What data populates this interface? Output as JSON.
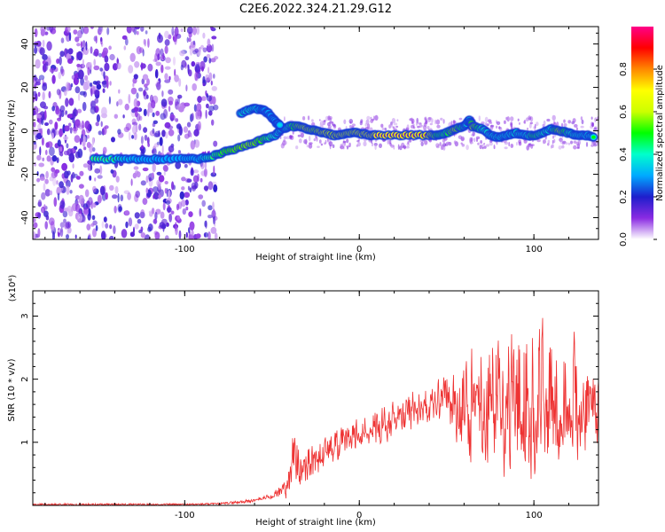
{
  "title": "C2E6.2022.324.21.29.G12",
  "chart_data": [
    {
      "type": "heatmap",
      "xlabel": "Height of straight line (km)",
      "ylabel": "Frequency (Hz)",
      "xlim": [
        -187,
        137
      ],
      "ylim": [
        -50,
        48
      ],
      "xticks": [
        -100,
        0,
        100
      ],
      "yticks": [
        -40,
        -20,
        0,
        20,
        40
      ],
      "grid": false,
      "noise_region_x": [
        -187,
        -88
      ],
      "ridge": {
        "x": [
          -152,
          -142,
          -132,
          -122,
          -112,
          -100,
          -92,
          -85,
          -78,
          -70,
          -62,
          -55,
          -48,
          -44,
          -40,
          -35,
          -30,
          -25,
          -20,
          -15,
          -10,
          -5,
          0,
          5,
          10,
          20,
          30,
          40,
          45,
          50,
          55,
          60,
          63,
          65,
          70,
          75,
          80,
          85,
          90,
          95,
          100,
          105,
          110,
          115,
          120,
          125,
          130,
          135
        ],
        "y": [
          -13,
          -13,
          -13,
          -13,
          -13,
          -13,
          -13,
          -12,
          -10,
          -8,
          -6,
          -4,
          -2,
          1,
          2,
          2,
          1,
          0,
          -1,
          -2,
          -2,
          -1,
          -1,
          -2,
          -2,
          -2,
          -2,
          -2,
          -2,
          -1,
          1,
          2,
          5,
          2,
          1,
          -2,
          -3,
          -2,
          -1,
          -2,
          -2,
          -1,
          1,
          0,
          -1,
          -2,
          -2,
          -3
        ],
        "amplitude": [
          0.6,
          0.55,
          0.4,
          0.3,
          0.3,
          0.3,
          0.4,
          0.6,
          0.7,
          0.75,
          0.8,
          0.7,
          0.55,
          0.5,
          0.6,
          0.8,
          0.85,
          0.8,
          0.9,
          0.85,
          0.9,
          0.85,
          0.9,
          0.95,
          1.0,
          1.0,
          1.0,
          0.95,
          0.7,
          0.65,
          0.85,
          0.6,
          0.5,
          0.85,
          0.6,
          0.5,
          0.55,
          0.5,
          0.55,
          0.5,
          0.7,
          0.6,
          0.55,
          0.85,
          0.6,
          0.55,
          0.5,
          0.5
        ]
      },
      "branch": {
        "x": [
          -68,
          -62,
          -56,
          -52,
          -48,
          -45
        ],
        "y": [
          8,
          10,
          10,
          8,
          4,
          2
        ],
        "amplitude": [
          0.5,
          0.55,
          0.45,
          0.4,
          0.4,
          0.35
        ]
      },
      "colorbar": {
        "label": "Normalized spectral amplitude",
        "range": [
          0,
          1
        ],
        "ticks": [
          0.0,
          0.2,
          0.4,
          0.6,
          0.8
        ],
        "tick_labels": [
          "0.0",
          "0.2",
          "0.4",
          "0.6",
          "0.8"
        ],
        "colors": [
          "#ffffff",
          "#8a2be2",
          "#1e1ecc",
          "#00aaff",
          "#00ffcc",
          "#00ff00",
          "#ccff00",
          "#ffff00",
          "#ff8800",
          "#ff0000",
          "#ff0088"
        ]
      }
    },
    {
      "type": "line",
      "xlabel": "Height of straight line (km)",
      "ylabel": "SNR (10 * v/v)",
      "multiplier_label": "(x10⁴)",
      "xlim": [
        -187,
        137
      ],
      "ylim": [
        0,
        3.4
      ],
      "xticks": [
        -100,
        0,
        100
      ],
      "yticks": [
        1,
        2,
        3
      ],
      "grid": false,
      "color": "#ee3333",
      "envelope": {
        "x": [
          -187,
          -150,
          -100,
          -80,
          -62,
          -55,
          -50,
          -45,
          -40,
          -38,
          -35,
          -30,
          -25,
          -20,
          -10,
          0,
          10,
          20,
          30,
          40,
          50,
          60,
          70,
          80,
          90,
          95,
          100,
          105,
          110,
          120,
          130,
          137
        ],
        "upper": [
          0.03,
          0.03,
          0.03,
          0.04,
          0.1,
          0.16,
          0.2,
          0.4,
          0.9,
          1.3,
          1.1,
          1.05,
          1.1,
          1.1,
          1.3,
          1.5,
          1.6,
          1.7,
          1.9,
          2.0,
          2.2,
          2.6,
          2.8,
          3.0,
          3.05,
          3.3,
          3.1,
          3.2,
          3.2,
          3.0,
          2.8,
          2.4
        ],
        "lower": [
          0.0,
          0.0,
          0.0,
          0.01,
          0.04,
          0.08,
          0.1,
          0.1,
          0.05,
          0.15,
          0.2,
          0.3,
          0.4,
          0.5,
          0.7,
          0.8,
          0.9,
          1.0,
          1.1,
          1.2,
          1.2,
          0.6,
          0.5,
          0.3,
          0.15,
          0.3,
          0.2,
          0.4,
          0.5,
          0.5,
          0.6,
          0.8
        ]
      }
    }
  ]
}
